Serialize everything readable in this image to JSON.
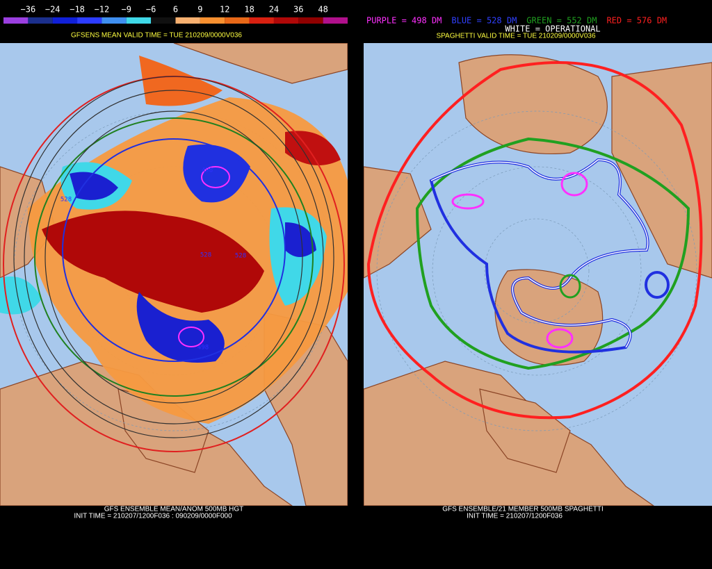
{
  "left_panel": {
    "colorbar": {
      "labels": [
        "−36",
        "−24",
        "−18",
        "−12",
        "−9",
        "−6",
        "6",
        "9",
        "12",
        "18",
        "24",
        "36",
        "48"
      ],
      "colors": [
        "#9b3fe0",
        "#1b2f8c",
        "#1020d8",
        "#2c3cff",
        "#3f8ff0",
        "#3fd8e8",
        "#101010",
        "#f8b070",
        "#f89030",
        "#e86818",
        "#d82010",
        "#b00808",
        "#900000",
        "#b0108c"
      ]
    },
    "subtitle": "GFSENS MEAN VALID TIME = TUE 210209/0000V036",
    "contour_labels": [
      "498",
      "528",
      "528",
      "528",
      "498"
    ],
    "footer": [
      "GFS ENSEMBLE MEAN/ANOM 500MB HGT",
      "INIT TIME = 210207/1200F036 : 090209/0000F000"
    ]
  },
  "right_panel": {
    "legend": [
      {
        "text": "PURPLE = 498 DM",
        "color": "#ff30ff"
      },
      {
        "text": "BLUE = 528 DM",
        "color": "#3040ff"
      },
      {
        "text": "GREEN = 552 DM",
        "color": "#20a020"
      },
      {
        "text": "RED = 576 DM",
        "color": "#ff2020"
      }
    ],
    "operational": "WHITE = OPERATIONAL",
    "subtitle": "SPAGHETTI VALID TIME = TUE 210209/0000V036",
    "footer": [
      "GFS ENSEMBLE/21 MEMBER 500MB SPAGHETTI",
      "INIT TIME = 210207/1200F036"
    ]
  }
}
